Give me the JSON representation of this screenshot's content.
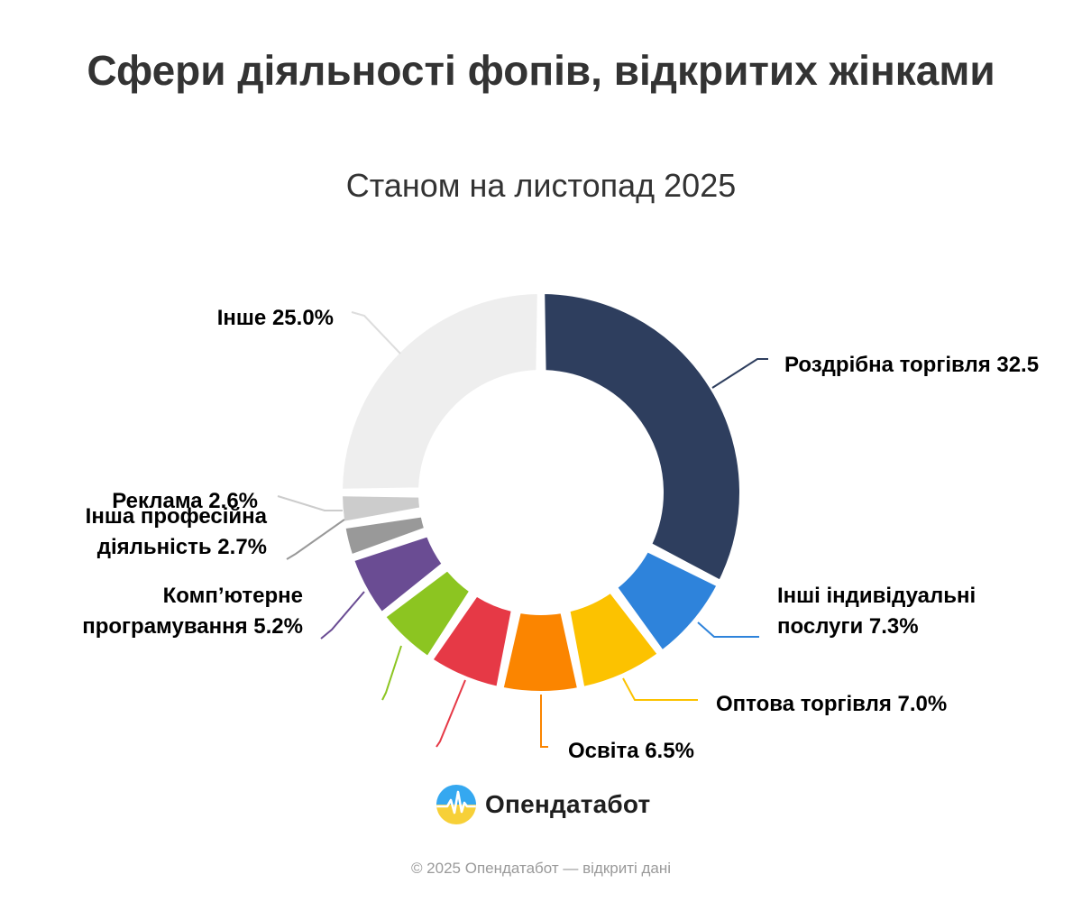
{
  "header": {
    "title": "Сфери діяльності фопів, відкритих жінками",
    "subtitle": "Станом на листопад 2025"
  },
  "chart_data": {
    "type": "pie",
    "donut": true,
    "unit": "%",
    "slices": [
      {
        "label": "Роздрібна торгівля",
        "value": 32.5,
        "color": "#2e3e5e",
        "label_text": [
          "Роздрібна торгівля 32.5"
        ]
      },
      {
        "label": "Інші індивідуальні послуги",
        "value": 7.3,
        "color": "#2e83db",
        "label_text": [
          "Інші індивідуальні",
          "послуги 7.3%"
        ]
      },
      {
        "label": "Оптова торгівля",
        "value": 7.0,
        "color": "#fcc200",
        "label_text": [
          "Оптова торгівля 7.0%"
        ]
      },
      {
        "label": "Освіта",
        "value": 6.5,
        "color": "#fb8500",
        "label_text": [
          "Освіта 6.5%"
        ]
      },
      {
        "label": "",
        "value": 6.1,
        "color": "#e63946",
        "label_text": []
      },
      {
        "label": "",
        "value": 5.1,
        "color": "#8cc521",
        "label_text": []
      },
      {
        "label": "Комп’ютерне програмування",
        "value": 5.2,
        "color": "#6a4c93",
        "label_text": [
          "Комп’ютерне",
          "програмування 5.2%"
        ]
      },
      {
        "label": "Інша професійна діяльність",
        "value": 2.7,
        "color": "#999999",
        "label_text": [
          "Інша професійна",
          "діяльність 2.7%"
        ]
      },
      {
        "label": "Реклама",
        "value": 2.6,
        "color": "#cccccc",
        "label_text": [
          "Реклама 2.6%"
        ]
      },
      {
        "label": "Інше",
        "value": 25.0,
        "color": "#eeeeee",
        "label_text": [
          "Інше 25.0%"
        ]
      }
    ]
  },
  "brand": {
    "name": "Опендатабот",
    "logo_icon": "opendatabot-logo-icon"
  },
  "footer": {
    "text": "© 2025 Опендатабот — відкриті дані"
  }
}
